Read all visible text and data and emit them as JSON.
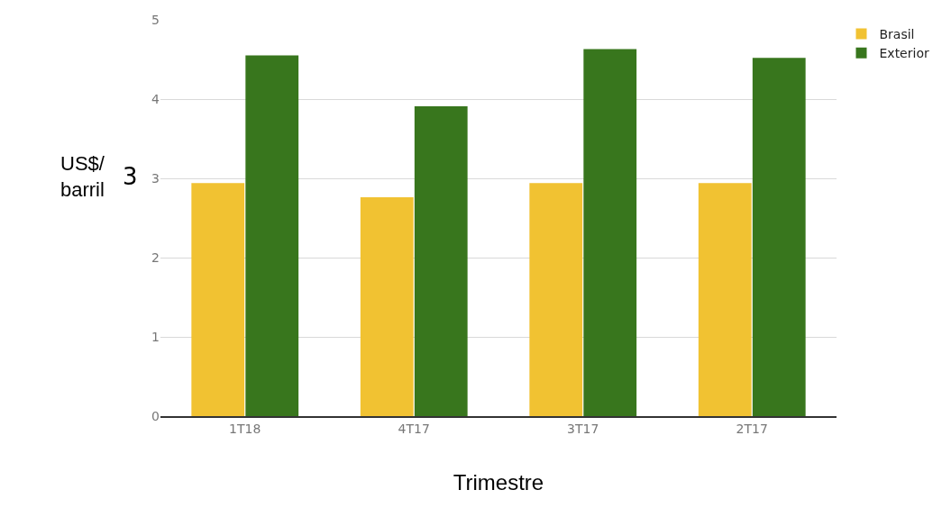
{
  "chart_data": {
    "type": "bar",
    "xlabel": "Trimestre",
    "ylabel": "US$/\nbarril",
    "annotations": [
      "3"
    ],
    "categories": [
      "1T18",
      "4T17",
      "3T17",
      "2T17"
    ],
    "series": [
      {
        "name": "Brasil",
        "color": "#f1c232",
        "values": [
          2.94,
          2.76,
          2.94,
          2.94
        ]
      },
      {
        "name": "Exterior",
        "color": "#38761d",
        "values": [
          4.55,
          3.91,
          4.63,
          4.52
        ]
      }
    ],
    "ylim": [
      0,
      5
    ],
    "yticks": [
      0,
      1,
      2,
      3,
      4,
      5
    ],
    "grid": "y",
    "legend": "top right"
  }
}
